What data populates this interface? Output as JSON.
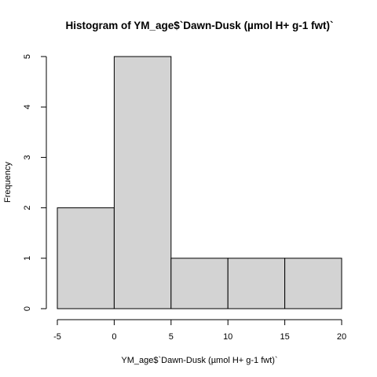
{
  "chart_data": {
    "type": "bar",
    "title": "Histogram of YM_age$`Dawn-Dusk (µmol H+ g-1 fwt)`",
    "xlabel": "YM_age$`Dawn-Dusk (µmol H+ g-1 fwt)`",
    "ylabel": "Frequency",
    "bins": [
      {
        "from": -5,
        "to": 0,
        "count": 2
      },
      {
        "from": 0,
        "to": 5,
        "count": 5
      },
      {
        "from": 5,
        "to": 10,
        "count": 1
      },
      {
        "from": 10,
        "to": 15,
        "count": 1
      },
      {
        "from": 15,
        "to": 20,
        "count": 1
      }
    ],
    "xlim": [
      -5,
      20
    ],
    "ylim": [
      0,
      5
    ],
    "xticks": [
      -5,
      0,
      5,
      10,
      15,
      20
    ],
    "yticks": [
      0,
      1,
      2,
      3,
      4,
      5
    ],
    "bar_color": "#d3d3d3",
    "edge_color": "#000000",
    "grid": false,
    "legend": "none"
  }
}
